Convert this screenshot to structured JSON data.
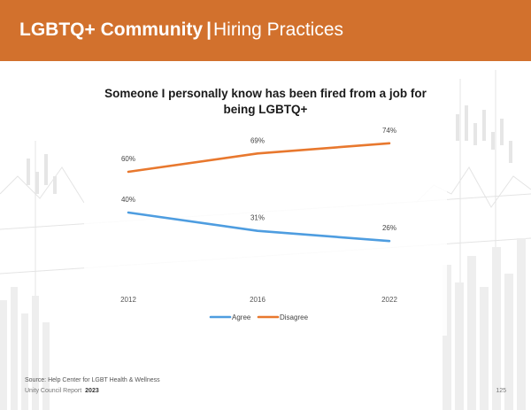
{
  "header": {
    "title_bold": "LGBTQ+ Community",
    "separator": "|",
    "title_light": "Hiring Practices",
    "background_color": "#d2712d"
  },
  "chart_data": {
    "type": "line",
    "title": "Someone I personally know has been fired from a job for being LGBTQ+",
    "categories": [
      "2012",
      "2016",
      "2022"
    ],
    "series": [
      {
        "name": "Agree",
        "values": [
          40,
          31,
          26
        ],
        "color": "#4e9de0"
      },
      {
        "name": "Disagree",
        "values": [
          60,
          69,
          74
        ],
        "color": "#e8782e"
      }
    ],
    "value_suffix": "%",
    "xlabel": "",
    "ylabel": "",
    "grid": false,
    "legend_position": "bottom"
  },
  "footer": {
    "source": "Source: Help Center for LGBT Health & Wellness",
    "report_label": "Unity Council Report",
    "report_year": "2023",
    "page_number": "125"
  }
}
